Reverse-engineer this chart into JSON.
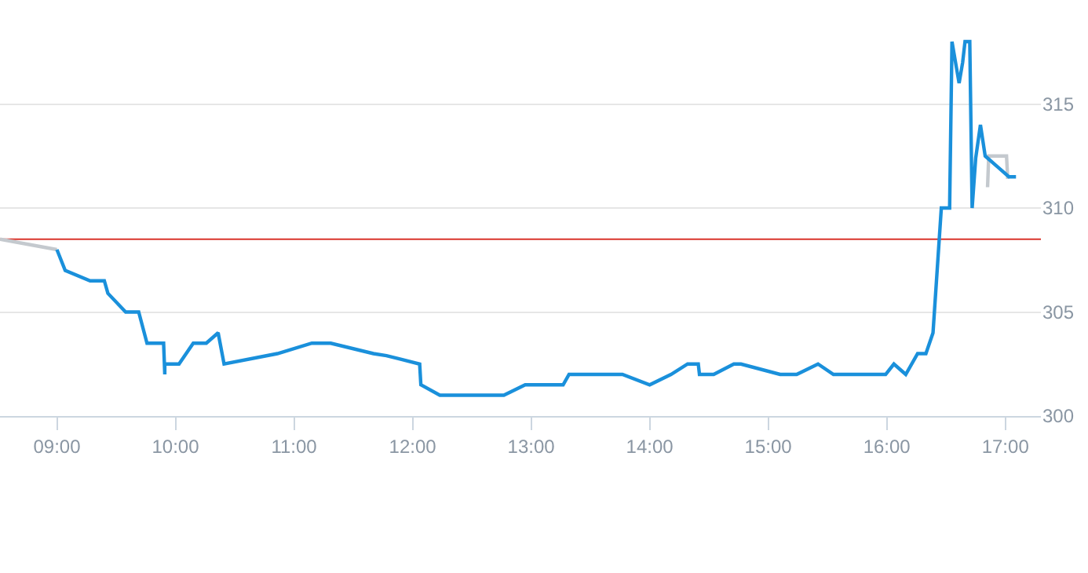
{
  "chart_data": {
    "type": "line",
    "xlim": [
      8.52,
      17.3
    ],
    "ylim": [
      300,
      320
    ],
    "xticks": [
      {
        "value": 9,
        "label": "09:00"
      },
      {
        "value": 10,
        "label": "10:00"
      },
      {
        "value": 11,
        "label": "11:00"
      },
      {
        "value": 12,
        "label": "12:00"
      },
      {
        "value": 13,
        "label": "13:00"
      },
      {
        "value": 14,
        "label": "14:00"
      },
      {
        "value": 15,
        "label": "15:00"
      },
      {
        "value": 16,
        "label": "16:00"
      },
      {
        "value": 17,
        "label": "17:00"
      }
    ],
    "yticks": [
      300,
      305,
      310,
      315
    ],
    "grid": "y",
    "marker": "none",
    "line_style": "solid",
    "ref_lines": [
      {
        "axis": "y",
        "value": 308.5,
        "color": "#d9342b"
      }
    ],
    "series": [
      {
        "color": "#c4c9ce",
        "x": [
          8.52,
          9.0,
          null,
          16.85,
          16.86,
          17.01,
          17.02
        ],
        "values": [
          308.5,
          308.0,
          null,
          311.0,
          312.5,
          312.5,
          311.4
        ]
      },
      {
        "color": "#1a90db",
        "x": [
          9.0,
          9.07,
          9.28,
          9.4,
          9.43,
          9.58,
          9.69,
          9.76,
          9.9,
          9.91,
          9.91,
          10.03,
          10.15,
          10.26,
          10.36,
          10.41,
          10.86,
          11.15,
          11.31,
          11.67,
          11.78,
          12.06,
          12.07,
          12.23,
          12.77,
          12.95,
          13.13,
          13.27,
          13.32,
          13.77,
          14.0,
          14.18,
          14.32,
          14.41,
          14.42,
          14.54,
          14.71,
          14.77,
          15.1,
          15.24,
          15.42,
          15.55,
          15.99,
          16.06,
          16.16,
          16.26,
          16.33,
          16.39,
          16.46,
          16.53,
          16.55,
          16.61,
          16.64,
          16.66,
          16.7,
          16.72,
          16.75,
          16.79,
          16.83,
          17.03,
          17.09
        ],
        "values": [
          308.0,
          307.0,
          306.5,
          306.5,
          305.9,
          305.0,
          305.0,
          303.5,
          303.5,
          302.0,
          302.5,
          302.5,
          303.5,
          303.5,
          304.0,
          302.5,
          303.0,
          303.5,
          303.5,
          303.0,
          302.9,
          302.5,
          301.5,
          301.0,
          301.0,
          301.5,
          301.5,
          301.5,
          302.0,
          302.0,
          301.5,
          302.0,
          302.5,
          302.5,
          302.0,
          302.0,
          302.5,
          302.5,
          302.0,
          302.0,
          302.5,
          302.0,
          302.0,
          302.5,
          302.0,
          303.0,
          303.0,
          304.0,
          310.0,
          310.0,
          318.0,
          316.0,
          317.0,
          318.0,
          318.0,
          310.0,
          312.4,
          314.0,
          312.5,
          311.5,
          311.5
        ]
      }
    ]
  }
}
